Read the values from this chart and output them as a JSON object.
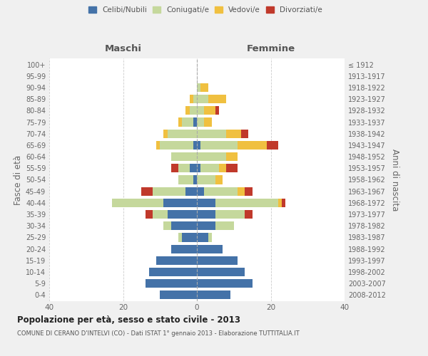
{
  "age_groups": [
    "0-4",
    "5-9",
    "10-14",
    "15-19",
    "20-24",
    "25-29",
    "30-34",
    "35-39",
    "40-44",
    "45-49",
    "50-54",
    "55-59",
    "60-64",
    "65-69",
    "70-74",
    "75-79",
    "80-84",
    "85-89",
    "90-94",
    "95-99",
    "100+"
  ],
  "birth_years": [
    "2008-2012",
    "2003-2007",
    "1998-2002",
    "1993-1997",
    "1988-1992",
    "1983-1987",
    "1978-1982",
    "1973-1977",
    "1968-1972",
    "1963-1967",
    "1958-1962",
    "1953-1957",
    "1948-1952",
    "1943-1947",
    "1938-1942",
    "1933-1937",
    "1928-1932",
    "1923-1927",
    "1918-1922",
    "1913-1917",
    "≤ 1912"
  ],
  "maschi": {
    "celibi": [
      10,
      14,
      13,
      11,
      7,
      4,
      7,
      8,
      9,
      3,
      1,
      2,
      0,
      1,
      0,
      1,
      0,
      0,
      0,
      0,
      0
    ],
    "coniugati": [
      0,
      0,
      0,
      0,
      0,
      1,
      2,
      4,
      14,
      9,
      4,
      3,
      7,
      9,
      8,
      3,
      2,
      1,
      0,
      0,
      0
    ],
    "vedovi": [
      0,
      0,
      0,
      0,
      0,
      0,
      0,
      0,
      0,
      0,
      0,
      0,
      0,
      1,
      1,
      1,
      1,
      1,
      0,
      0,
      0
    ],
    "divorziati": [
      0,
      0,
      0,
      0,
      0,
      0,
      0,
      2,
      0,
      3,
      0,
      2,
      0,
      0,
      0,
      0,
      0,
      0,
      0,
      0,
      0
    ]
  },
  "femmine": {
    "nubili": [
      9,
      15,
      13,
      11,
      7,
      3,
      5,
      5,
      5,
      2,
      0,
      1,
      0,
      1,
      0,
      0,
      0,
      0,
      0,
      0,
      0
    ],
    "coniugate": [
      0,
      0,
      0,
      0,
      0,
      1,
      5,
      8,
      17,
      9,
      5,
      5,
      8,
      10,
      8,
      2,
      2,
      3,
      1,
      0,
      0
    ],
    "vedove": [
      0,
      0,
      0,
      0,
      0,
      0,
      0,
      0,
      1,
      2,
      2,
      2,
      3,
      8,
      4,
      2,
      3,
      5,
      2,
      0,
      0
    ],
    "divorziate": [
      0,
      0,
      0,
      0,
      0,
      0,
      0,
      2,
      1,
      2,
      0,
      3,
      0,
      3,
      2,
      0,
      1,
      0,
      0,
      0,
      0
    ]
  },
  "colors": {
    "celibi_nubili": "#4472a8",
    "coniugati": "#c5d89c",
    "vedovi": "#f0c040",
    "divorziati": "#c0392b"
  },
  "title": "Popolazione per età, sesso e stato civile - 2013",
  "subtitle": "COMUNE DI CERANO D'INTELVI (CO) - Dati ISTAT 1° gennaio 2013 - Elaborazione TUTTITALIA.IT",
  "xlabel_left": "Maschi",
  "xlabel_right": "Femmine",
  "ylabel_left": "Fasce di età",
  "ylabel_right": "Anni di nascita",
  "xlim": 40,
  "bg_color": "#f0f0f0",
  "plot_bg": "#ffffff"
}
